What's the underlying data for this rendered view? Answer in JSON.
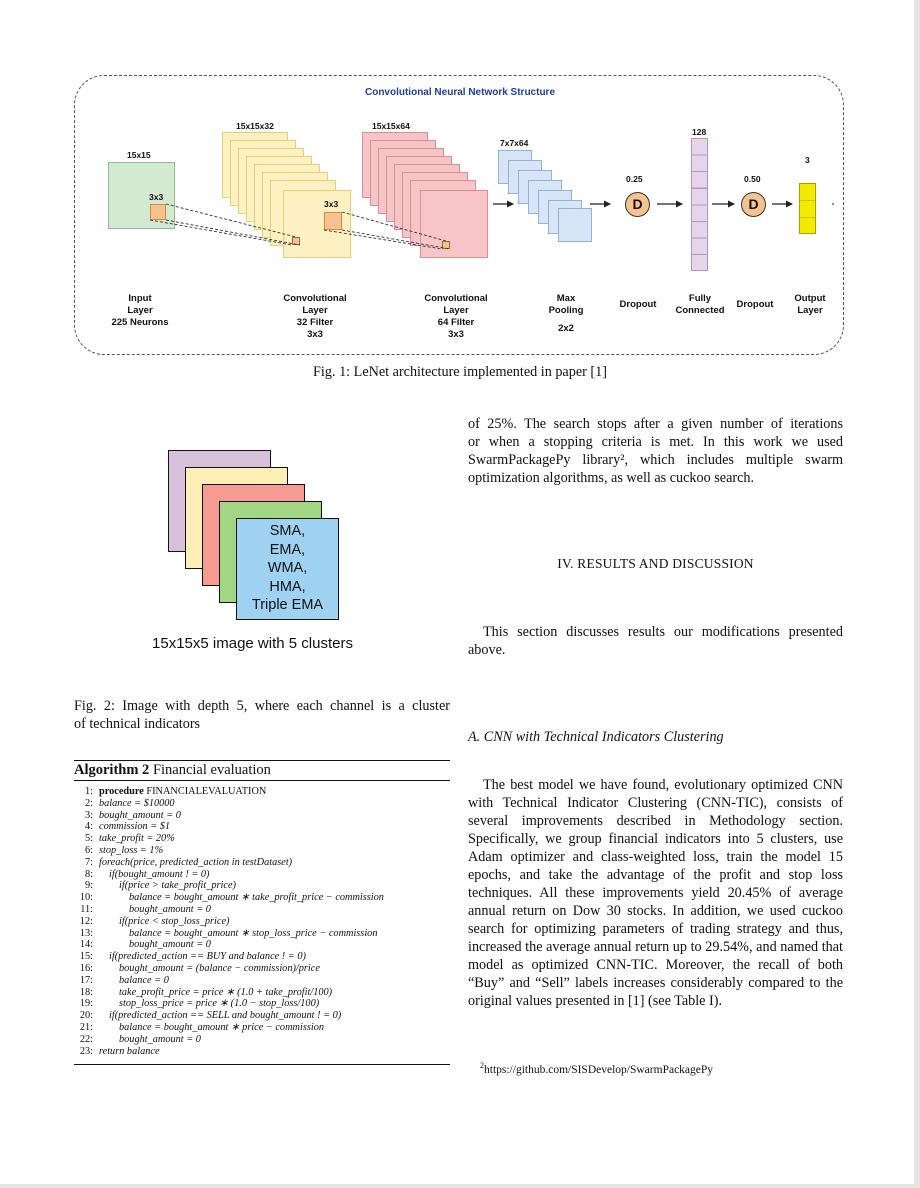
{
  "fig1": {
    "title": "Convolutional Neural Network Structure",
    "caption": "Fig. 1: LeNet architecture implemented in paper [1]",
    "dims": {
      "input": "15x15",
      "kernel": "3x3",
      "conv1": "15x15x32",
      "conv1_kernel": "3x3",
      "conv2": "15x15x64",
      "pool": "7x7x64",
      "drop1": "0.25",
      "fc": "128",
      "drop2": "0.50",
      "out": "3"
    },
    "dropout_symbol": "D",
    "labels": {
      "input": [
        "Input",
        "Layer",
        "225 Neurons"
      ],
      "conv1": [
        "Convolutional",
        "Layer",
        "32 Filter",
        "3x3"
      ],
      "conv2": [
        "Convolutional",
        "Layer",
        "64 Filter",
        "3x3"
      ],
      "pool": [
        "Max",
        "Pooling",
        "2x2"
      ],
      "drop1": "Dropout",
      "fc": [
        "Fully",
        "Connected"
      ],
      "drop2": "Dropout",
      "out": [
        "Output",
        "Layer"
      ]
    },
    "colors": {
      "input": "#d3e9d1",
      "conv1": "#fdf1c4",
      "conv2": "#f7c5c7",
      "pool": "#d7e5f7",
      "fc": "#e6d5ea",
      "out": "#f4ea00",
      "kernel": "#f6c28d"
    }
  },
  "fig2": {
    "channel_text": [
      "SMA,",
      "EMA,",
      "WMA,",
      "HMA,",
      "Triple EMA"
    ],
    "image_label": "15x15x5 image with 5 clusters",
    "caption_lines": [
      "Fig. 2: Image with depth 5, where each channel is a cluster",
      "of technical indicators"
    ],
    "colors": [
      "#d7c0db",
      "#fdefb5",
      "#f69b90",
      "#a3d682",
      "#9fd2f1"
    ]
  },
  "algorithm": {
    "label": "Algorithm 2",
    "title": "Financial evaluation",
    "lines": [
      {
        "n": "1:",
        "text": "FINANCIALEVALUATION",
        "kw": "procedure"
      },
      {
        "n": "2:",
        "text": "balance = $10000"
      },
      {
        "n": "3:",
        "text": "bought_amount = 0"
      },
      {
        "n": "4:",
        "text": "commission = $1"
      },
      {
        "n": "5:",
        "text": "take_profit = 20%"
      },
      {
        "n": "6:",
        "text": "stop_loss = 1%"
      },
      {
        "n": "7:",
        "text": "foreach(price, predicted_action in testDataset)"
      },
      {
        "n": "8:",
        "text": "if(bought_amount ! = 0)"
      },
      {
        "n": "9:",
        "text": "if(price > take_profit_price)"
      },
      {
        "n": "10:",
        "text": "balance = bought_amount ∗ take_profit_price − commission"
      },
      {
        "n": "11:",
        "text": "bought_amount = 0"
      },
      {
        "n": "12:",
        "text": "if(price < stop_loss_price)"
      },
      {
        "n": "13:",
        "text": "balance = bought_amount ∗ stop_loss_price − commission"
      },
      {
        "n": "14:",
        "text": "bought_amount = 0"
      },
      {
        "n": "15:",
        "text": "if(predicted_action == BUY and balance ! = 0)"
      },
      {
        "n": "16:",
        "text": "bought_amount = (balance − commission)/price"
      },
      {
        "n": "17:",
        "text": "balance = 0"
      },
      {
        "n": "18:",
        "text": "take_profit_price = price ∗ (1.0 + take_profit/100)"
      },
      {
        "n": "19:",
        "text": "stop_loss_price = price ∗ (1.0 − stop_loss/100)"
      },
      {
        "n": "20:",
        "text": "if(predicted_action == SELL and bought_amount ! = 0)"
      },
      {
        "n": "21:",
        "text": "balance = bought_amount ∗ price − commission"
      },
      {
        "n": "22:",
        "text": "bought_amount = 0"
      },
      {
        "n": "23:",
        "text": "return balance"
      }
    ]
  },
  "right": {
    "para1_lines": [
      "of 25%. The search stops after a given number of iterations",
      "or when a stopping criteria is met. In this work we used",
      "SwarmPackagePy library², which includes multiple swarm",
      "optimization algorithms, as well as cuckoo search."
    ],
    "section": "IV. RESULTS AND DISCUSSION",
    "para2": "This section discusses results our modifications presented above.",
    "subsection": "A. CNN with Technical Indicators Clustering",
    "para3": "The best model we have found, evolutionary optimized CNN with Technical Indicator Clustering (CNN-TIC), consists of several improvements described in Methodology section. Specifically, we group financial indicators into 5 clusters, use Adam optimizer and class-weighted loss, train the model 15 epochs, and take the advantage of the profit and stop loss techniques. All these improvements yield 20.45% of average annual return on Dow 30 stocks. In addition, we used cuckoo search for optimizing parameters of trading strategy and thus, increased the average annual return up to 29.54%, and named that model as optimized CNN-TIC. Moreover, the recall of both “Buy” and “Sell” labels increases considerably compared to the original values presented in [1] (see Table I).",
    "footnote_mark": "2",
    "footnote_url": "https://github.com/SISDevelop/SwarmPackagePy"
  }
}
